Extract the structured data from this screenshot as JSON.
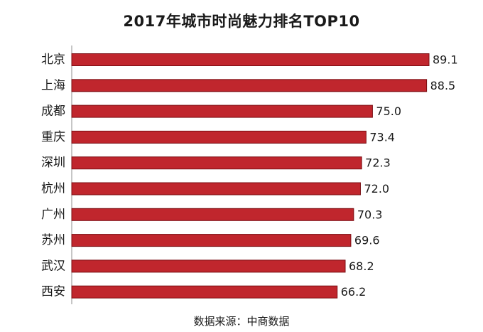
{
  "chart_data": {
    "type": "bar",
    "orientation": "horizontal",
    "title": "2017年城市时尚魅力排名TOP10",
    "categories": [
      "北京",
      "上海",
      "成都",
      "重庆",
      "深圳",
      "杭州",
      "广州",
      "苏州",
      "武汉",
      "西安"
    ],
    "values": [
      89.1,
      88.5,
      75.0,
      73.4,
      72.3,
      72.0,
      70.3,
      69.6,
      68.2,
      66.2
    ],
    "value_labels": [
      "89.1",
      "88.5",
      "75.0",
      "73.4",
      "72.3",
      "72.0",
      "70.3",
      "69.6",
      "68.2",
      "66.2"
    ],
    "xlim": [
      0,
      89.1
    ],
    "xlabel": "",
    "ylabel": "",
    "grid": false,
    "legend": "none",
    "bar_color": "#c0262d",
    "bar_edge_color": "#7a0d12",
    "axis_color": "#8c8c8c"
  },
  "source": {
    "label": "数据来源",
    "separator": "：",
    "name": "中商数据"
  }
}
